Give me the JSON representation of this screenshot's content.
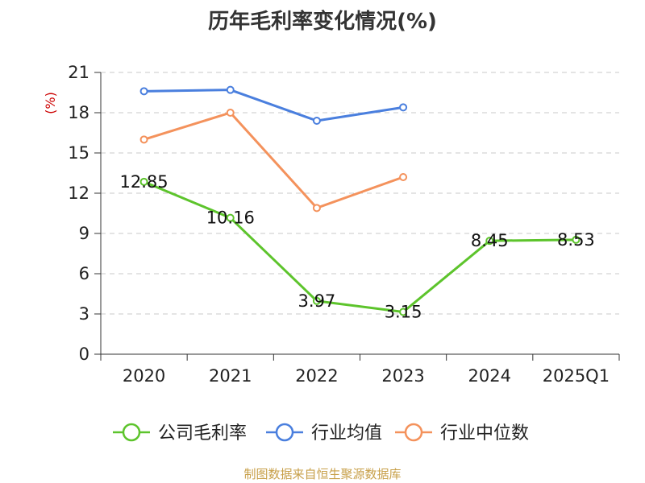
{
  "chart_data": {
    "type": "line",
    "title": "历年毛利率变化情况(%)",
    "ylabel": "(%)",
    "xlabel": "",
    "categories": [
      "2020",
      "2021",
      "2022",
      "2023",
      "2024",
      "2025Q1"
    ],
    "ylim": [
      0,
      21
    ],
    "yticks": [
      0,
      3,
      6,
      9,
      12,
      15,
      18,
      21
    ],
    "grid": true,
    "legend_position": "bottom",
    "series": [
      {
        "name": "公司毛利率",
        "color": "#5dc42c",
        "values": [
          12.85,
          10.16,
          3.97,
          3.15,
          8.45,
          8.53
        ],
        "labels": [
          "12.85",
          "10.16",
          "3.97",
          "3.15",
          "8.45",
          "8.53"
        ]
      },
      {
        "name": "行业均值",
        "color": "#4a7fde",
        "values": [
          19.6,
          19.7,
          17.4,
          18.4,
          null,
          null
        ]
      },
      {
        "name": "行业中位数",
        "color": "#f4925c",
        "values": [
          16.0,
          18.0,
          10.9,
          13.2,
          null,
          null
        ]
      }
    ],
    "ylabel_color": "#cc0000"
  },
  "footer": {
    "source": "制图数据来自恒生聚源数据库"
  }
}
